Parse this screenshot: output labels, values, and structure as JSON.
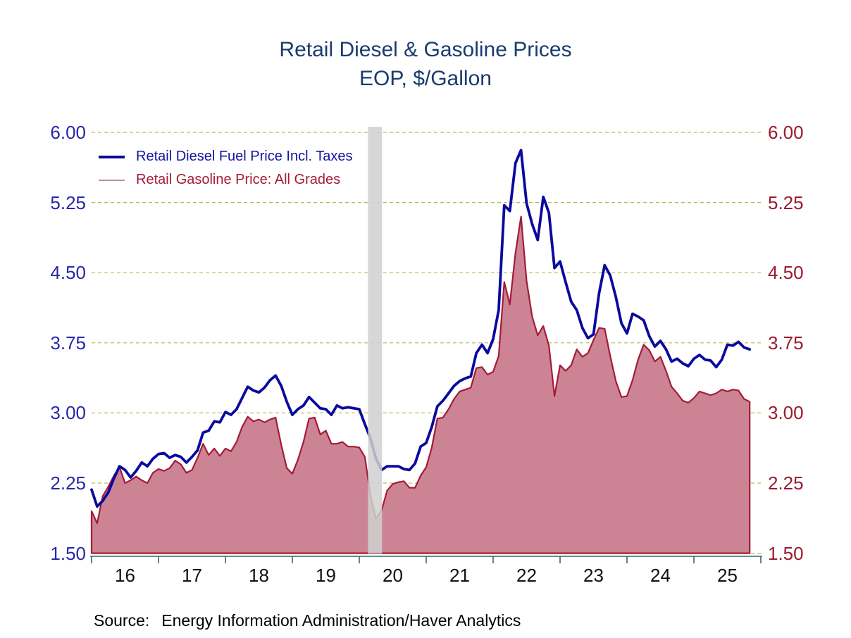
{
  "title": {
    "line1": "Retail Diesel & Gasoline Prices",
    "line2": "EOP, $/Gallon"
  },
  "legend": {
    "items": [
      {
        "label": "Retail Diesel Fuel Price Incl. Taxes",
        "series": "diesel"
      },
      {
        "label": "Retail Gasoline Price: All Grades",
        "series": "gasoline"
      }
    ]
  },
  "source": {
    "label": "Source:",
    "text": "Energy Information Administration/Haver Analytics"
  },
  "colors": {
    "title_text": "#1a3c6e",
    "diesel_line": "#0a0a9e",
    "diesel_legend_text": "#14149e",
    "gasoline_line": "#a41b38",
    "gasoline_fill": "#cc8494",
    "gasoline_legend_swatch": "#c08fa2",
    "gasoline_legend_text": "#a41b38",
    "left_axis_text": "#2828a8",
    "right_axis_text": "#9b1b2e",
    "gridline": "#b8b85c",
    "x_axis": "#2f6f62",
    "x_label_text": "#111111",
    "recession_band": "#d0d0d0"
  },
  "chart_data": {
    "type": "line",
    "title": "Retail Diesel & Gasoline Prices",
    "subtitle": "EOP, $/Gallon",
    "ylabel": "$/Gallon",
    "x_description": "Monthly end-of-period values, Jan 2016 through Nov 2025",
    "xlim": [
      2016,
      2026
    ],
    "ylim": [
      1.5,
      6.0
    ],
    "grid": "horizontal dashed",
    "legend_position": "top-left inside plot",
    "y_ticks": [
      {
        "value": 6.0,
        "label": "6.00"
      },
      {
        "value": 5.25,
        "label": "5.25"
      },
      {
        "value": 4.5,
        "label": "4.50"
      },
      {
        "value": 3.75,
        "label": "3.75"
      },
      {
        "value": 3.0,
        "label": "3.00"
      },
      {
        "value": 2.25,
        "label": "2.25"
      },
      {
        "value": 1.5,
        "label": "1.50"
      }
    ],
    "x_ticks": [
      {
        "value": 2016.5,
        "label": "16"
      },
      {
        "value": 2017.5,
        "label": "17"
      },
      {
        "value": 2018.5,
        "label": "18"
      },
      {
        "value": 2019.5,
        "label": "19"
      },
      {
        "value": 2020.5,
        "label": "20"
      },
      {
        "value": 2021.5,
        "label": "21"
      },
      {
        "value": 2022.5,
        "label": "22"
      },
      {
        "value": 2023.5,
        "label": "23"
      },
      {
        "value": 2024.5,
        "label": "24"
      },
      {
        "value": 2025.5,
        "label": "25"
      }
    ],
    "x_year_boundaries": [
      2016,
      2017,
      2018,
      2019,
      2020,
      2021,
      2022,
      2023,
      2024,
      2025,
      2026
    ],
    "recession_band": {
      "x_start": 2020.13,
      "x_end": 2020.34
    },
    "x_start": 2016.0,
    "x_step": 0.0833333,
    "series": [
      {
        "name": "Retail Diesel Fuel Price Incl. Taxes",
        "style": "line",
        "values": [
          2.18,
          2.0,
          2.06,
          2.15,
          2.3,
          2.43,
          2.39,
          2.31,
          2.38,
          2.47,
          2.43,
          2.51,
          2.56,
          2.57,
          2.52,
          2.55,
          2.53,
          2.47,
          2.53,
          2.6,
          2.79,
          2.81,
          2.91,
          2.9,
          3.01,
          2.98,
          3.04,
          3.16,
          3.28,
          3.24,
          3.22,
          3.27,
          3.35,
          3.4,
          3.29,
          3.12,
          2.98,
          3.04,
          3.08,
          3.17,
          3.11,
          3.05,
          3.04,
          2.98,
          3.08,
          3.05,
          3.06,
          3.05,
          3.04,
          2.88,
          2.73,
          2.51,
          2.39,
          2.43,
          2.43,
          2.43,
          2.4,
          2.39,
          2.46,
          2.64,
          2.68,
          2.85,
          3.07,
          3.13,
          3.21,
          3.29,
          3.34,
          3.37,
          3.39,
          3.64,
          3.73,
          3.64,
          3.79,
          4.1,
          5.22,
          5.16,
          5.67,
          5.81,
          5.24,
          5.02,
          4.85,
          5.31,
          5.14,
          4.55,
          4.62,
          4.4,
          4.19,
          4.1,
          3.91,
          3.8,
          3.84,
          4.28,
          4.58,
          4.47,
          4.24,
          3.96,
          3.85,
          4.06,
          4.03,
          3.99,
          3.82,
          3.71,
          3.77,
          3.68,
          3.55,
          3.58,
          3.53,
          3.5,
          3.58,
          3.62,
          3.57,
          3.56,
          3.49,
          3.57,
          3.73,
          3.72,
          3.76,
          3.7,
          3.68
        ]
      },
      {
        "name": "Retail Gasoline Price: All Grades",
        "style": "area",
        "values": [
          1.95,
          1.82,
          2.11,
          2.21,
          2.33,
          2.42,
          2.25,
          2.28,
          2.32,
          2.28,
          2.25,
          2.36,
          2.4,
          2.38,
          2.41,
          2.49,
          2.45,
          2.36,
          2.39,
          2.52,
          2.67,
          2.55,
          2.62,
          2.54,
          2.62,
          2.59,
          2.69,
          2.85,
          2.96,
          2.91,
          2.93,
          2.9,
          2.93,
          2.95,
          2.66,
          2.41,
          2.35,
          2.5,
          2.69,
          2.94,
          2.95,
          2.77,
          2.81,
          2.67,
          2.67,
          2.69,
          2.64,
          2.64,
          2.63,
          2.53,
          2.12,
          1.87,
          1.96,
          2.17,
          2.24,
          2.26,
          2.27,
          2.2,
          2.2,
          2.33,
          2.42,
          2.63,
          2.94,
          2.95,
          3.04,
          3.15,
          3.23,
          3.25,
          3.27,
          3.48,
          3.49,
          3.41,
          3.44,
          3.61,
          4.4,
          4.16,
          4.71,
          5.1,
          4.41,
          4.03,
          3.83,
          3.93,
          3.72,
          3.18,
          3.51,
          3.45,
          3.51,
          3.68,
          3.6,
          3.64,
          3.78,
          3.91,
          3.9,
          3.61,
          3.34,
          3.17,
          3.18,
          3.35,
          3.57,
          3.73,
          3.67,
          3.55,
          3.6,
          3.45,
          3.28,
          3.21,
          3.13,
          3.11,
          3.16,
          3.23,
          3.21,
          3.19,
          3.21,
          3.25,
          3.23,
          3.25,
          3.24,
          3.15,
          3.12
        ]
      }
    ]
  }
}
